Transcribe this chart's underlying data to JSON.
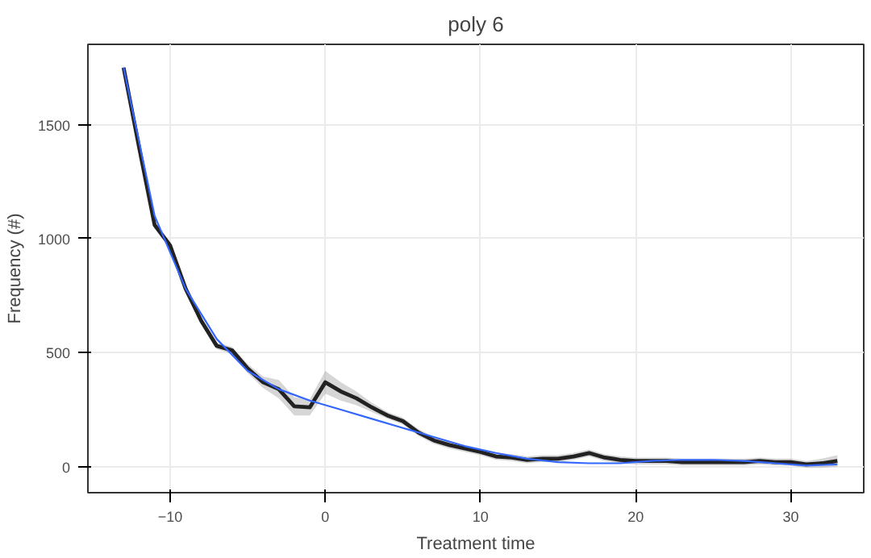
{
  "chart_data": {
    "type": "line",
    "title": "poly 6",
    "xlabel": "Treatment time",
    "ylabel": "Frequency (#)",
    "xlim": [
      -15.3,
      34.7
    ],
    "ylim": [
      -114,
      1852
    ],
    "xticks": [
      -10,
      0,
      10,
      20,
      30
    ],
    "yticks": [
      0,
      500,
      1000,
      1500
    ],
    "grid": true,
    "series": [
      {
        "color": "#222222",
        "x": [
          -13,
          -12,
          -11,
          -10,
          -9,
          -8,
          -7,
          -6,
          -5,
          -4,
          -3,
          -2,
          -1,
          0,
          1,
          2,
          3,
          4,
          5,
          6,
          7,
          8,
          9,
          10,
          11,
          12,
          13,
          14,
          15,
          16,
          17,
          18,
          19,
          20,
          21,
          22,
          23,
          24,
          25,
          26,
          27,
          28,
          29,
          30,
          31,
          32,
          33
        ],
        "values": [
          1750,
          1400,
          1060,
          970,
          780,
          640,
          530,
          510,
          430,
          370,
          340,
          265,
          260,
          370,
          330,
          300,
          260,
          225,
          200,
          150,
          115,
          95,
          80,
          65,
          45,
          40,
          30,
          35,
          35,
          45,
          60,
          40,
          30,
          25,
          25,
          25,
          20,
          20,
          20,
          20,
          20,
          25,
          20,
          20,
          10,
          15,
          25
        ],
        "lower": [
          1735,
          1385,
          1045,
          955,
          765,
          625,
          515,
          495,
          410,
          345,
          300,
          225,
          225,
          320,
          290,
          270,
          240,
          210,
          185,
          135,
          100,
          80,
          65,
          50,
          30,
          25,
          15,
          20,
          20,
          30,
          45,
          25,
          15,
          10,
          10,
          10,
          5,
          5,
          5,
          5,
          5,
          10,
          5,
          5,
          -5,
          -5,
          0
        ],
        "upper": [
          1765,
          1415,
          1075,
          985,
          795,
          655,
          545,
          525,
          450,
          395,
          380,
          305,
          295,
          420,
          370,
          330,
          280,
          240,
          215,
          165,
          130,
          110,
          95,
          80,
          60,
          55,
          45,
          50,
          50,
          60,
          75,
          55,
          45,
          40,
          40,
          40,
          35,
          35,
          35,
          35,
          35,
          40,
          35,
          35,
          25,
          35,
          50
        ]
      },
      {
        "color": "#3366ff",
        "x": [
          -13,
          -11,
          -9,
          -7,
          -5,
          -3,
          -1,
          1,
          3,
          5,
          7,
          9,
          11,
          13,
          15,
          17,
          19,
          21,
          23,
          25,
          27,
          29,
          31,
          33
        ],
        "values": [
          1750,
          1100,
          780,
          560,
          420,
          340,
          290,
          250,
          210,
          170,
          130,
          90,
          60,
          35,
          20,
          15,
          15,
          25,
          30,
          30,
          25,
          15,
          5,
          10
        ]
      }
    ]
  }
}
